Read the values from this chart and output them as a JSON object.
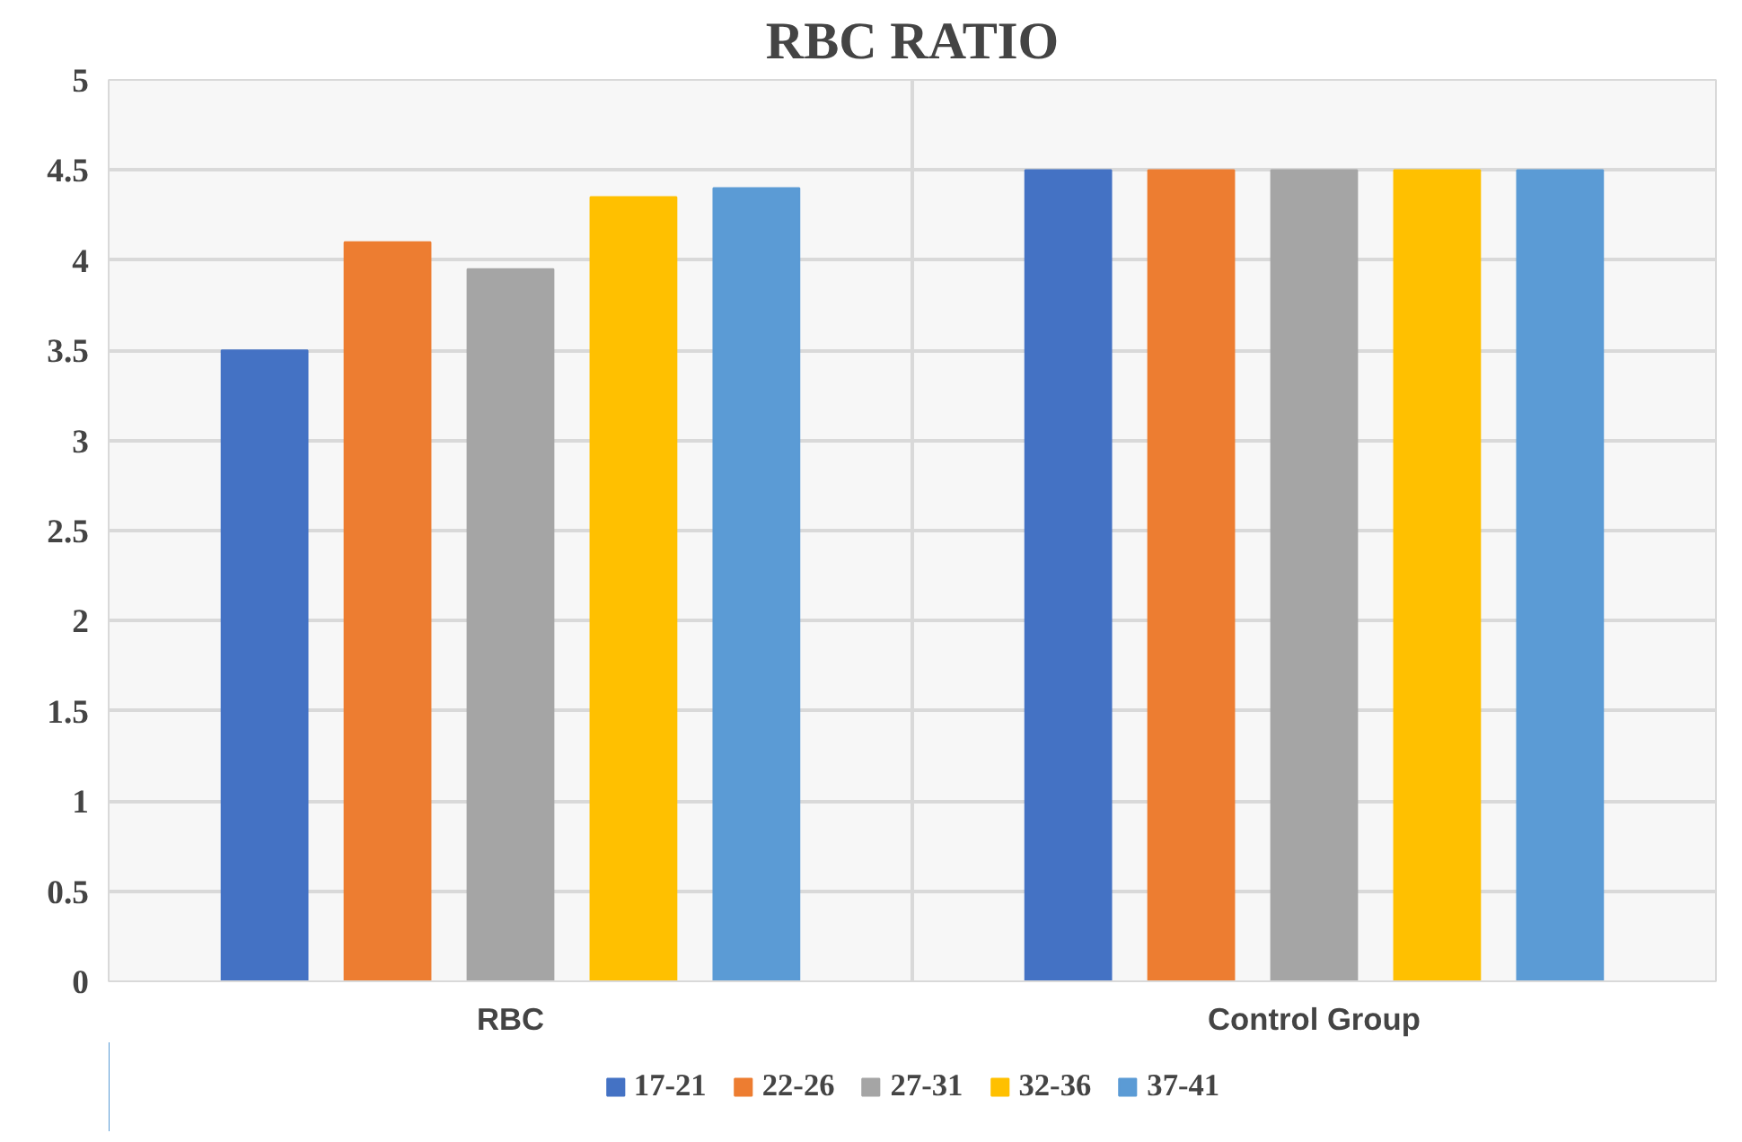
{
  "chart_data": {
    "type": "bar",
    "title": "RBC RATIO",
    "categories": [
      "RBC",
      "Control Group"
    ],
    "series": [
      {
        "name": "17-21",
        "color": "#4472c4",
        "values": [
          3.5,
          4.5
        ]
      },
      {
        "name": "22-26",
        "color": "#ed7d31",
        "values": [
          4.1,
          4.5
        ]
      },
      {
        "name": "27-31",
        "color": "#a5a5a5",
        "values": [
          3.95,
          4.5
        ]
      },
      {
        "name": "32-36",
        "color": "#ffc000",
        "values": [
          4.35,
          4.5
        ]
      },
      {
        "name": "37-41",
        "color": "#5b9bd5",
        "values": [
          4.4,
          4.5
        ]
      }
    ],
    "ylim": [
      0,
      5
    ],
    "yticks": [
      0,
      0.5,
      1,
      1.5,
      2,
      2.5,
      3,
      3.5,
      4,
      4.5,
      5
    ],
    "grid": true,
    "legend": "bottom"
  }
}
